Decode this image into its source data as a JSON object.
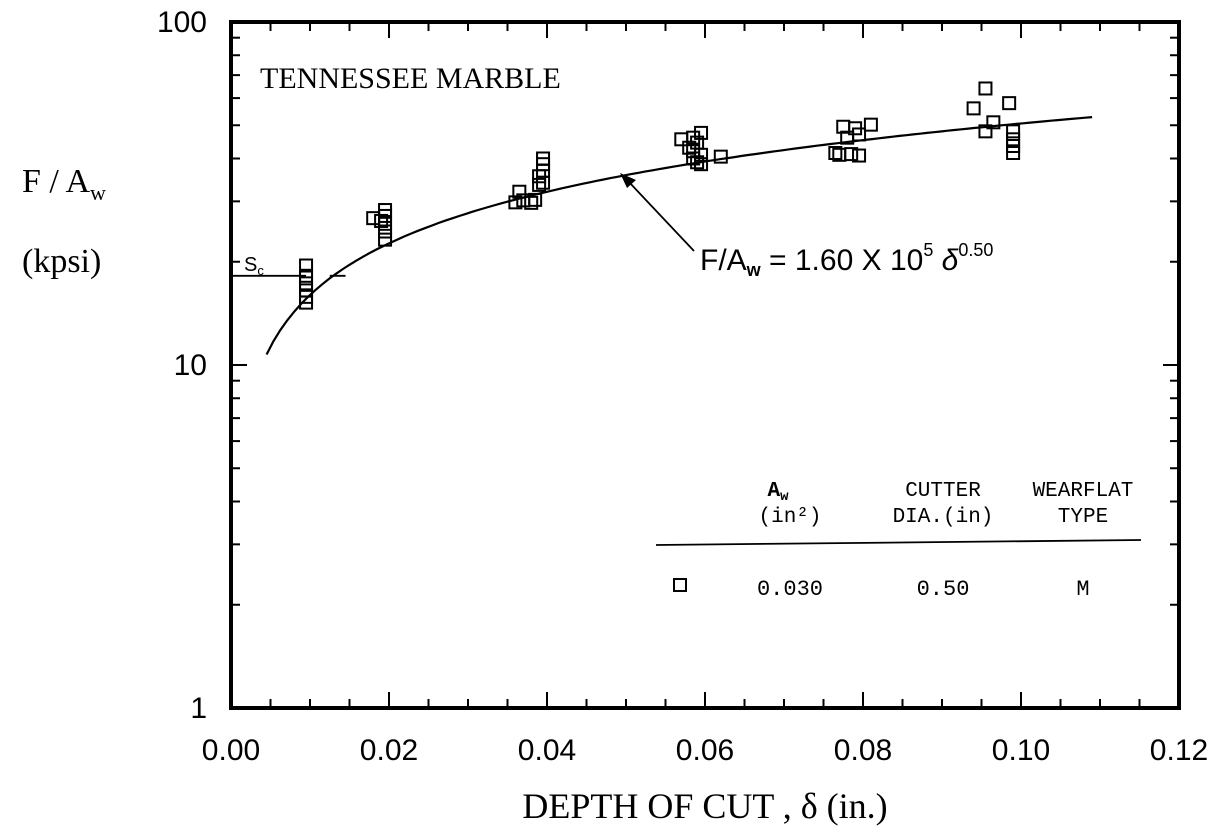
{
  "chart_data": {
    "type": "scatter",
    "title": "TENNESSEE MARBLE",
    "xlabel": "DEPTH OF CUT , δ (in.)",
    "ylabel": "F / A",
    "ylabel_sub": "w",
    "yunit": "(kpsi)",
    "xlim": [
      0,
      0.12
    ],
    "ylim": [
      1,
      100
    ],
    "yscale": "log",
    "x_ticks": [
      "0.00",
      "0.02",
      "0.04",
      "0.06",
      "0.08",
      "0.10",
      "0.12"
    ],
    "y_ticks": [
      "1",
      "10",
      "100"
    ],
    "grid": false,
    "series": [
      {
        "marker": "square-open",
        "points": [
          [
            0.0095,
            15.2
          ],
          [
            0.0095,
            15.8
          ],
          [
            0.0095,
            16.5
          ],
          [
            0.0095,
            17.3
          ],
          [
            0.0095,
            18.2
          ],
          [
            0.0095,
            19.5
          ],
          [
            0.018,
            26.8
          ],
          [
            0.019,
            26.3
          ],
          [
            0.0195,
            23.2
          ],
          [
            0.0195,
            24.5
          ],
          [
            0.0195,
            25.8
          ],
          [
            0.0195,
            27.2
          ],
          [
            0.0195,
            28.3
          ],
          [
            0.036,
            29.8
          ],
          [
            0.0365,
            32.0
          ],
          [
            0.037,
            30.2
          ],
          [
            0.038,
            29.7
          ],
          [
            0.0385,
            30.3
          ],
          [
            0.039,
            33.5
          ],
          [
            0.039,
            35.5
          ],
          [
            0.0395,
            34.0
          ],
          [
            0.0395,
            36.8
          ],
          [
            0.0395,
            38.5
          ],
          [
            0.0395,
            40.0
          ],
          [
            0.057,
            45.5
          ],
          [
            0.058,
            43.0
          ],
          [
            0.0585,
            40.0
          ],
          [
            0.0585,
            42.0
          ],
          [
            0.0585,
            46.0
          ],
          [
            0.059,
            39.0
          ],
          [
            0.059,
            44.5
          ],
          [
            0.0595,
            38.5
          ],
          [
            0.0595,
            41.0
          ],
          [
            0.0595,
            47.5
          ],
          [
            0.062,
            40.5
          ],
          [
            0.0765,
            41.5
          ],
          [
            0.077,
            41.0
          ],
          [
            0.0775,
            49.5
          ],
          [
            0.078,
            46.0
          ],
          [
            0.0785,
            41.2
          ],
          [
            0.079,
            49.0
          ],
          [
            0.0795,
            40.8
          ],
          [
            0.0795,
            47.0
          ],
          [
            0.081,
            50.2
          ],
          [
            0.094,
            56.0
          ],
          [
            0.0955,
            64.0
          ],
          [
            0.0955,
            48.0
          ],
          [
            0.0965,
            51.0
          ],
          [
            0.0985,
            58.0
          ],
          [
            0.099,
            48.0
          ],
          [
            0.099,
            45.5
          ],
          [
            0.099,
            43.5
          ],
          [
            0.099,
            41.5
          ]
        ]
      }
    ],
    "curve": {
      "coefficient": 160000,
      "exponent": 0.5,
      "x_range": [
        0.0045,
        0.109
      ]
    },
    "curve_label": {
      "main": "F/A",
      "sub": "w",
      "eq": " = 1.60 X 10",
      "sup1": "5",
      "delta": " δ",
      "sup2": "0.50"
    },
    "sc_line": {
      "value": 18.2,
      "x_range": [
        0,
        0.0095
      ]
    },
    "sc_label": {
      "main": "S",
      "sub": "c"
    },
    "sc_dash": {
      "x_range": [
        0.0125,
        0.0145
      ]
    },
    "legend": {
      "headers": [
        {
          "line1": "A",
          "line1_sub": "w",
          "line2": "(in²)"
        },
        {
          "line1": "CUTTER",
          "line2": "DIA.(in)"
        },
        {
          "line1": "WEARFLAT",
          "line2": "TYPE"
        }
      ],
      "rows": [
        {
          "marker": "square-open",
          "values": [
            "0.030",
            "0.50",
            "M"
          ]
        }
      ]
    }
  }
}
